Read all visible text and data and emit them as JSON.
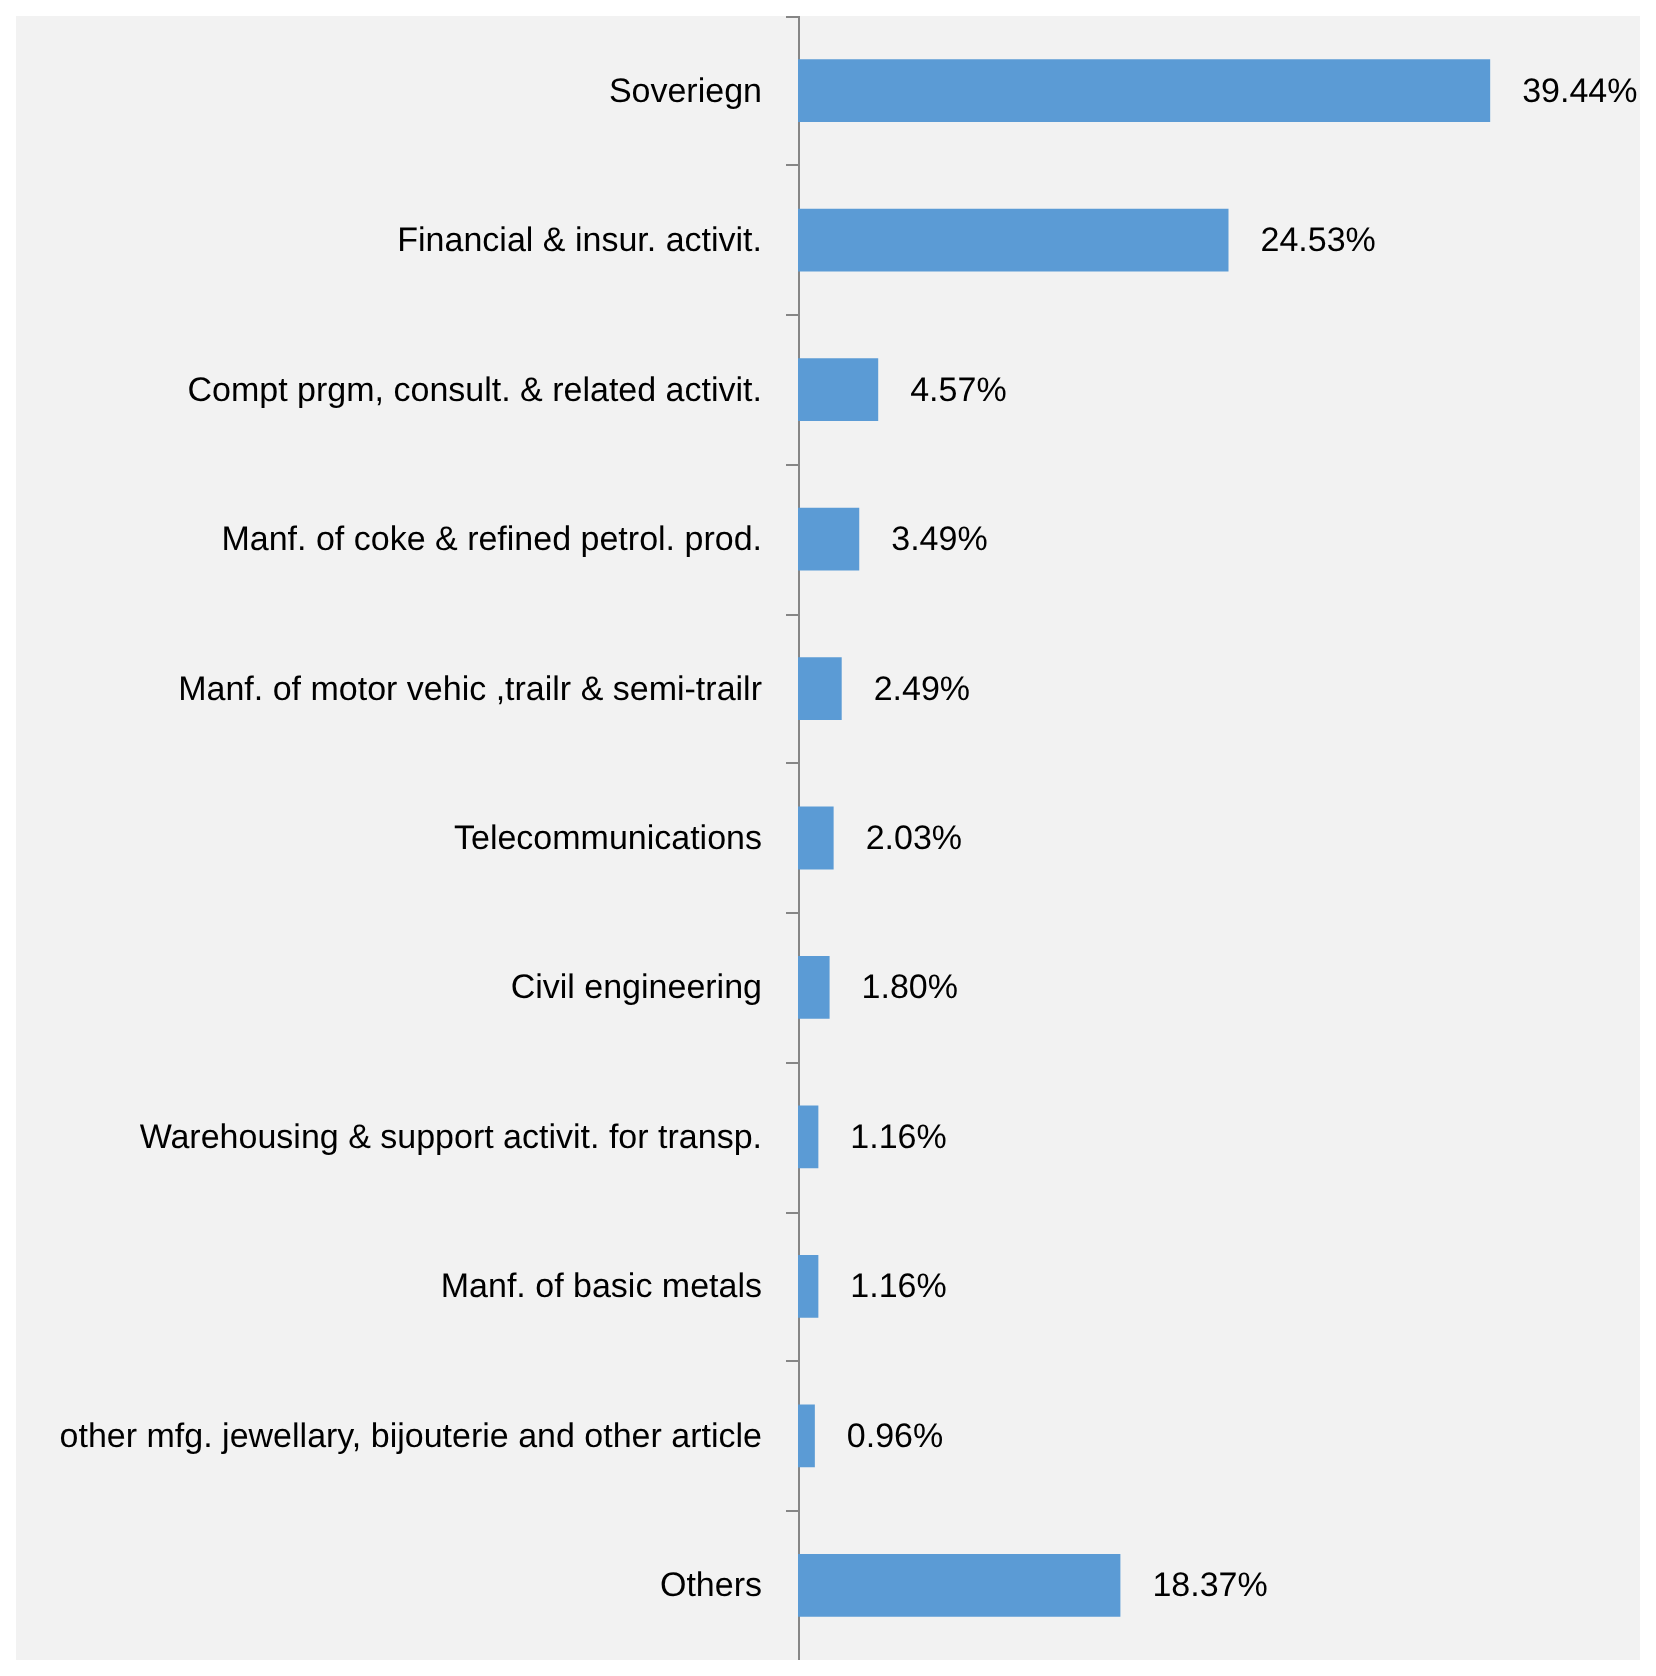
{
  "chart_data": {
    "type": "bar",
    "orientation": "horizontal",
    "categories": [
      "Soveriegn",
      "Financial & insur. activit.",
      "Compt prgm, consult. & related activit.",
      "Manf. of coke & refined petrol. prod.",
      "Manf. of motor vehic ,trailr & semi-trailr",
      "Telecommunications",
      "Civil engineering",
      "Warehousing & support activit. for transp.",
      "Manf. of basic metals",
      "other mfg. jewellary, bijouterie and other article",
      "Others"
    ],
    "values": [
      39.44,
      24.53,
      4.57,
      3.49,
      2.49,
      2.03,
      1.8,
      1.16,
      1.16,
      0.96,
      18.37
    ],
    "value_labels": [
      "39.44%",
      "24.53%",
      "4.57%",
      "3.49%",
      "2.49%",
      "2.03%",
      "1.80%",
      "1.16%",
      "1.16%",
      "0.96%",
      "18.37%"
    ],
    "color": "#5b9bd5"
  }
}
